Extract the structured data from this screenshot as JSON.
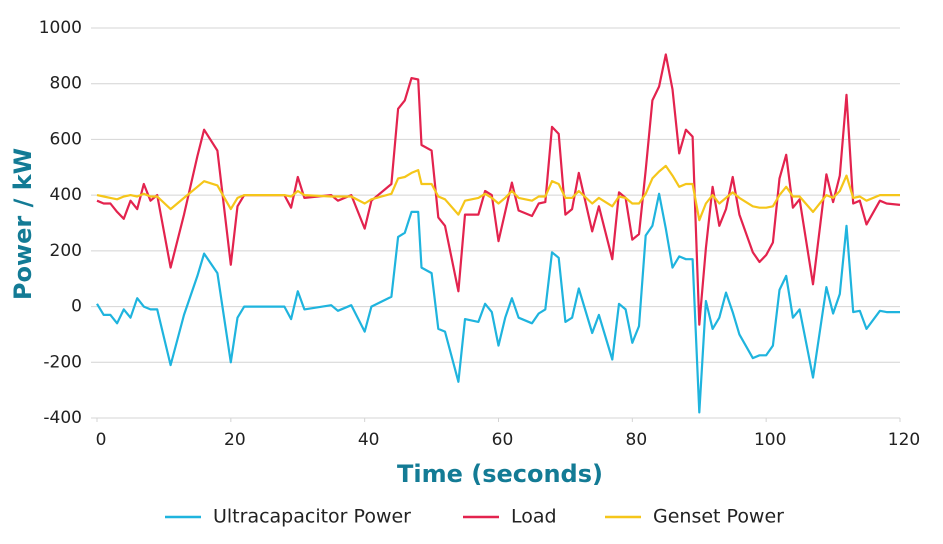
{
  "chart_data": {
    "type": "line",
    "x_label": "Time (seconds)",
    "y_label": "Power / kW",
    "xlim": [
      0,
      120
    ],
    "xticks": [
      0,
      20,
      40,
      60,
      80,
      100,
      120
    ],
    "ylim": [
      -400,
      1000
    ],
    "yticks": [
      -400,
      -200,
      0,
      200,
      400,
      600,
      800,
      1000
    ],
    "grid": true,
    "legend": "bottom",
    "x": [
      0,
      1,
      2,
      3,
      4,
      5,
      6,
      7,
      8,
      9,
      11,
      13,
      15,
      16,
      18,
      20,
      21,
      22,
      28,
      29,
      30,
      31,
      35,
      36,
      38,
      40,
      41,
      44,
      45,
      46,
      47,
      48,
      48.5,
      50,
      51,
      52,
      54,
      55,
      57,
      58,
      59,
      60,
      61,
      62,
      63,
      65,
      66,
      67,
      68,
      69,
      70,
      71,
      72,
      74,
      75,
      77,
      78,
      79,
      80,
      81,
      82,
      83,
      84,
      85,
      86,
      87,
      88,
      89,
      90,
      91,
      92,
      93,
      94,
      95,
      96,
      98,
      99,
      100,
      101,
      102,
      103,
      104,
      105,
      107,
      109,
      110,
      111,
      112,
      113,
      114,
      115,
      117,
      118,
      120
    ],
    "series": [
      {
        "name": "Ultracapacitor Power",
        "color": "#1fb4de",
        "values": [
          10,
          -30,
          -30,
          -60,
          -10,
          -40,
          30,
          0,
          -10,
          -10,
          -210,
          -30,
          110,
          190,
          120,
          -200,
          -40,
          0,
          0,
          -45,
          55,
          -10,
          5,
          -15,
          5,
          -90,
          0,
          35,
          250,
          265,
          340,
          340,
          140,
          120,
          -80,
          -90,
          -270,
          -45,
          -55,
          10,
          -20,
          -140,
          -40,
          30,
          -40,
          -60,
          -25,
          -10,
          195,
          175,
          -55,
          -40,
          65,
          -95,
          -30,
          -190,
          10,
          -10,
          -130,
          -70,
          255,
          290,
          405,
          280,
          140,
          180,
          170,
          170,
          -380,
          20,
          -80,
          -40,
          50,
          -20,
          -100,
          -185,
          -175,
          -175,
          -140,
          60,
          110,
          -40,
          -10,
          -255,
          70,
          -25,
          45,
          290,
          -20,
          -15,
          -80,
          -15,
          -20,
          -20
        ]
      },
      {
        "name": "Load",
        "color": "#e3234e",
        "values": [
          380,
          370,
          370,
          340,
          315,
          380,
          350,
          440,
          380,
          400,
          140,
          330,
          540,
          635,
          560,
          150,
          360,
          400,
          400,
          355,
          465,
          390,
          400,
          380,
          400,
          280,
          380,
          440,
          710,
          740,
          820,
          815,
          580,
          560,
          320,
          290,
          55,
          330,
          330,
          415,
          400,
          235,
          340,
          445,
          345,
          325,
          370,
          375,
          645,
          620,
          330,
          350,
          480,
          270,
          360,
          170,
          410,
          390,
          240,
          260,
          490,
          740,
          790,
          905,
          780,
          550,
          635,
          610,
          -65,
          210,
          430,
          290,
          350,
          465,
          330,
          195,
          160,
          185,
          230,
          460,
          545,
          355,
          385,
          80,
          475,
          375,
          470,
          760,
          370,
          380,
          295,
          380,
          370,
          365
        ]
      },
      {
        "name": "Genset Power",
        "color": "#f5c61a",
        "values": [
          400,
          395,
          390,
          385,
          395,
          400,
          395,
          405,
          395,
          395,
          350,
          390,
          430,
          450,
          435,
          350,
          390,
          400,
          400,
          395,
          415,
          400,
          395,
          395,
          395,
          370,
          385,
          405,
          460,
          465,
          480,
          490,
          440,
          440,
          395,
          385,
          330,
          380,
          390,
          405,
          390,
          370,
          390,
          415,
          390,
          380,
          395,
          395,
          450,
          440,
          390,
          390,
          415,
          370,
          390,
          360,
          395,
          390,
          370,
          370,
          405,
          460,
          485,
          505,
          470,
          430,
          440,
          440,
          310,
          370,
          400,
          370,
          390,
          410,
          390,
          360,
          355,
          355,
          360,
          400,
          430,
          395,
          395,
          340,
          400,
          390,
          415,
          470,
          390,
          395,
          380,
          400,
          400,
          400
        ]
      }
    ]
  }
}
